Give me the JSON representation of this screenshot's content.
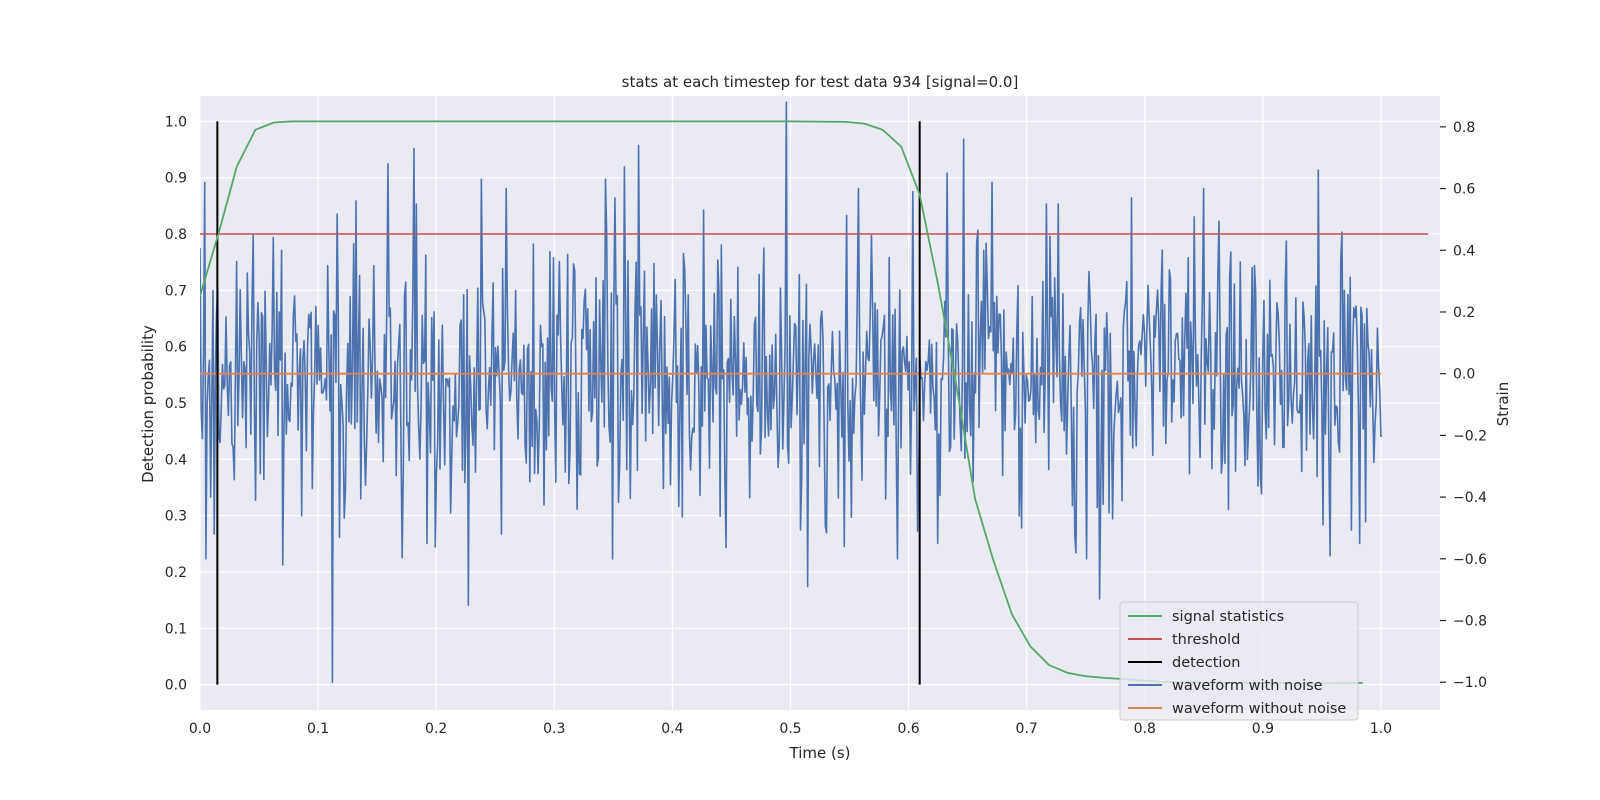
{
  "chart_data": {
    "type": "line",
    "title": "stats at each timestep for test data 934 [signal=0.0]",
    "xlabel": "Time (s)",
    "ylabel_left": "Detection probability",
    "ylabel_right": "Strain",
    "xlim": [
      0.0,
      1.05
    ],
    "ylim_left": [
      -0.045,
      1.045
    ],
    "ylim_right": [
      -1.09,
      0.9
    ],
    "x_ticks": [
      0.0,
      0.1,
      0.2,
      0.3,
      0.4,
      0.5,
      0.6,
      0.7,
      0.8,
      0.9,
      1.0
    ],
    "y_left_ticks": [
      0.0,
      0.1,
      0.2,
      0.3,
      0.4,
      0.5,
      0.6,
      0.7,
      0.8,
      0.9,
      1.0
    ],
    "y_right_ticks": [
      -1.0,
      -0.8,
      -0.6,
      -0.4,
      -0.2,
      0.0,
      0.2,
      0.4,
      0.6,
      0.8
    ],
    "grid": true,
    "legend_position": "lower-right",
    "colors": {
      "background": "#eaeaf2",
      "grid": "#ffffff",
      "signal_statistics": "#55a868",
      "threshold": "#c44e52",
      "detection": "#000000",
      "waveform_with_noise": "#4c72b0",
      "waveform_without_noise": "#dd8452"
    },
    "series": [
      {
        "name": "signal statistics",
        "axis": "left",
        "x": [
          0.0,
          0.0156,
          0.0312,
          0.0469,
          0.0625,
          0.0781,
          0.0938,
          0.125,
          0.25,
          0.5,
          0.5469,
          0.5625,
          0.5781,
          0.5938,
          0.6094,
          0.625,
          0.6406,
          0.6563,
          0.6719,
          0.6875,
          0.7031,
          0.7188,
          0.7344,
          0.75,
          0.7656,
          0.7813,
          0.8125,
          0.875,
          0.9375,
          0.9844
        ],
        "y": [
          0.69,
          0.8,
          0.92,
          0.985,
          0.998,
          1.0,
          1.0,
          1.0,
          1.0,
          1.0,
          0.999,
          0.996,
          0.985,
          0.955,
          0.87,
          0.71,
          0.53,
          0.33,
          0.22,
          0.125,
          0.068,
          0.035,
          0.021,
          0.015,
          0.012,
          0.01,
          0.005,
          0.003,
          0.002,
          0.003
        ]
      },
      {
        "name": "threshold",
        "axis": "left",
        "x": [
          0.0,
          1.04
        ],
        "y": [
          0.8,
          0.8
        ]
      },
      {
        "name": "detection",
        "axis": "left",
        "x": [
          0.0147,
          0.6094
        ],
        "y_range": [
          0.0,
          1.0
        ]
      },
      {
        "name": "waveform with noise",
        "axis": "right",
        "x_range": [
          0.0,
          1.0
        ],
        "num_points": 1000,
        "amplitude_scale": 0.21,
        "peaks": [
          {
            "x": 0.0039,
            "y": 0.62
          },
          {
            "x": 0.0049,
            "y": -0.6
          },
          {
            "x": 0.0107,
            "y": 0.27
          },
          {
            "x": 0.0117,
            "y": -0.52
          },
          {
            "x": 0.0449,
            "y": 0.45
          },
          {
            "x": 0.0469,
            "y": -0.41
          },
          {
            "x": 0.0693,
            "y": 0.4
          },
          {
            "x": 0.0703,
            "y": -0.62
          },
          {
            "x": 0.1084,
            "y": 0.35
          },
          {
            "x": 0.1123,
            "y": -1.0
          },
          {
            "x": 0.1182,
            "y": -0.53
          },
          {
            "x": 0.1318,
            "y": 0.56
          },
          {
            "x": 0.1592,
            "y": 0.68
          },
          {
            "x": 0.1816,
            "y": 0.73
          },
          {
            "x": 0.1924,
            "y": -0.55
          },
          {
            "x": 0.2383,
            "y": 0.63
          },
          {
            "x": 0.2275,
            "y": -0.48
          },
          {
            "x": 0.2275,
            "y": -0.75
          },
          {
            "x": 0.2549,
            "y": -0.52
          },
          {
            "x": 0.2588,
            "y": 0.6
          },
          {
            "x": 0.3438,
            "y": 0.63
          },
          {
            "x": 0.3516,
            "y": 0.57
          },
          {
            "x": 0.3594,
            "y": 0.67
          },
          {
            "x": 0.3711,
            "y": 0.74
          },
          {
            "x": 0.4053,
            "y": -0.43
          },
          {
            "x": 0.4268,
            "y": 0.53
          },
          {
            "x": 0.4961,
            "y": 0.88
          },
          {
            "x": 0.498,
            "y": -0.29
          },
          {
            "x": 0.5146,
            "y": -0.69
          },
          {
            "x": 0.5459,
            "y": -0.56
          },
          {
            "x": 0.5576,
            "y": 0.6
          },
          {
            "x": 0.6035,
            "y": 0.59
          },
          {
            "x": 0.6074,
            "y": -0.51
          },
          {
            "x": 0.625,
            "y": -0.55
          },
          {
            "x": 0.6328,
            "y": 0.65
          },
          {
            "x": 0.6465,
            "y": 0.76
          },
          {
            "x": 0.6709,
            "y": 0.62
          },
          {
            "x": 0.6953,
            "y": -0.5
          },
          {
            "x": 0.7617,
            "y": -0.73
          },
          {
            "x": 0.7266,
            "y": 0.55
          },
          {
            "x": 0.7422,
            "y": -0.58
          },
          {
            "x": 0.7891,
            "y": 0.57
          },
          {
            "x": 0.8496,
            "y": 0.6
          },
          {
            "x": 0.8711,
            "y": -0.44
          },
          {
            "x": 0.9199,
            "y": 0.43
          },
          {
            "x": 0.9473,
            "y": 0.66
          },
          {
            "x": 0.9512,
            "y": -0.49
          },
          {
            "x": 0.957,
            "y": -0.59
          },
          {
            "x": 0.9658,
            "y": 0.37
          },
          {
            "x": 0.9824,
            "y": -0.55
          },
          {
            "x": 0.9873,
            "y": -0.48
          }
        ]
      },
      {
        "name": "waveform without noise",
        "axis": "right",
        "x": [
          0.0,
          1.0
        ],
        "y": [
          0.0,
          0.0
        ]
      }
    ],
    "legend": [
      "signal statistics",
      "threshold",
      "detection",
      "waveform with noise",
      "waveform without noise"
    ]
  }
}
